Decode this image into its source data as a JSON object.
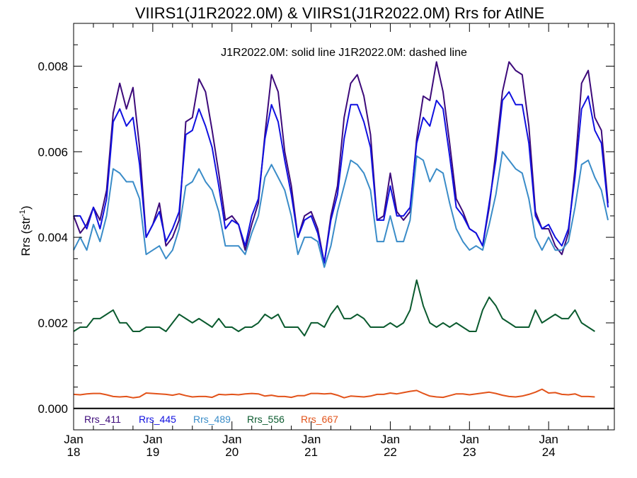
{
  "chart_data": {
    "type": "line",
    "title": "VIIRS1(J1R2022.0M) & VIIRS1(J1R2022.0M)  Rrs for AtlNE",
    "subtitle": "J1R2022.0M: solid line   J1R2022.0M: dashed line",
    "ylabel": "Rrs (str",
    "ylabel_sup": "-1",
    "ylabel_close": ")",
    "ylim": [
      -0.0005,
      0.009
    ],
    "xlim": [
      2018.0,
      2024.83
    ],
    "yticks": [
      {
        "value": 0.0,
        "label": "0.000"
      },
      {
        "value": 0.002,
        "label": "0.002"
      },
      {
        "value": 0.004,
        "label": "0.004"
      },
      {
        "value": 0.006,
        "label": "0.006"
      },
      {
        "value": 0.008,
        "label": "0.008"
      }
    ],
    "xticks": [
      {
        "value": 2018,
        "month": "Jan",
        "year": "18"
      },
      {
        "value": 2019,
        "month": "Jan",
        "year": "19"
      },
      {
        "value": 2020,
        "month": "Jan",
        "year": "20"
      },
      {
        "value": 2021,
        "month": "Jan",
        "year": "21"
      },
      {
        "value": 2022,
        "month": "Jan",
        "year": "22"
      },
      {
        "value": 2023,
        "month": "Jan",
        "year": "23"
      },
      {
        "value": 2024,
        "month": "Jan",
        "year": "24"
      }
    ],
    "x_start": 2018.0,
    "x_step": 0.08333,
    "series": [
      {
        "name": "Rrs_411",
        "color": "#3d0a7a",
        "values": [
          0.0045,
          0.0041,
          0.0043,
          0.0047,
          0.0044,
          0.0051,
          0.0069,
          0.0076,
          0.007,
          0.0075,
          0.0061,
          0.004,
          0.0043,
          0.0048,
          0.0038,
          0.004,
          0.0044,
          0.0067,
          0.0068,
          0.0077,
          0.0074,
          0.0065,
          0.0055,
          0.0044,
          0.0045,
          0.0043,
          0.0037,
          0.0043,
          0.0048,
          0.0064,
          0.0078,
          0.0074,
          0.006,
          0.0052,
          0.004,
          0.0045,
          0.0046,
          0.0042,
          0.0034,
          0.0045,
          0.0052,
          0.0068,
          0.0076,
          0.0078,
          0.0073,
          0.0064,
          0.0044,
          0.0045,
          0.0055,
          0.0046,
          0.0044,
          0.0046,
          0.0063,
          0.0073,
          0.0072,
          0.0081,
          0.0074,
          0.0062,
          0.0049,
          0.0046,
          0.0042,
          0.0041,
          0.0038,
          0.0047,
          0.006,
          0.0074,
          0.0081,
          0.0079,
          0.0078,
          0.0066,
          0.0046,
          0.0042,
          0.0042,
          0.0038,
          0.0036,
          0.0041,
          0.0056,
          0.0076,
          0.0079,
          0.0068,
          0.0065,
          0.0048
        ]
      },
      {
        "name": "Rrs_445",
        "color": "#1010e0",
        "values": [
          0.0045,
          0.0045,
          0.0042,
          0.0047,
          0.0042,
          0.0049,
          0.0067,
          0.007,
          0.0066,
          0.0068,
          0.0057,
          0.004,
          0.0043,
          0.0046,
          0.0039,
          0.0042,
          0.0046,
          0.0064,
          0.0065,
          0.007,
          0.0066,
          0.0061,
          0.0052,
          0.0042,
          0.0044,
          0.0043,
          0.0038,
          0.0045,
          0.0049,
          0.0063,
          0.0071,
          0.0067,
          0.0058,
          0.005,
          0.004,
          0.0044,
          0.0045,
          0.0041,
          0.0034,
          0.0044,
          0.005,
          0.0063,
          0.0071,
          0.0071,
          0.0067,
          0.0061,
          0.0044,
          0.0044,
          0.0052,
          0.0045,
          0.0045,
          0.0047,
          0.0062,
          0.0068,
          0.0066,
          0.0072,
          0.007,
          0.0059,
          0.0047,
          0.0045,
          0.0042,
          0.0041,
          0.0038,
          0.0048,
          0.0058,
          0.0072,
          0.0074,
          0.0071,
          0.0071,
          0.0062,
          0.0045,
          0.0042,
          0.0043,
          0.004,
          0.0038,
          0.0042,
          0.0054,
          0.007,
          0.0073,
          0.0065,
          0.0062,
          0.0047
        ]
      },
      {
        "name": "Rrs_489",
        "color": "#3a8cc8",
        "values": [
          0.0037,
          0.004,
          0.0037,
          0.0043,
          0.0039,
          0.0045,
          0.0056,
          0.0055,
          0.0053,
          0.0053,
          0.0049,
          0.0036,
          0.0037,
          0.0038,
          0.0035,
          0.0037,
          0.0042,
          0.0052,
          0.0053,
          0.0056,
          0.0053,
          0.0051,
          0.0046,
          0.0038,
          0.0038,
          0.0038,
          0.0036,
          0.0041,
          0.0045,
          0.0054,
          0.0057,
          0.0054,
          0.0051,
          0.0045,
          0.0036,
          0.004,
          0.004,
          0.0039,
          0.0033,
          0.0038,
          0.0046,
          0.0052,
          0.0058,
          0.0057,
          0.0055,
          0.0051,
          0.0039,
          0.0039,
          0.0045,
          0.0039,
          0.0039,
          0.0044,
          0.0059,
          0.0058,
          0.0053,
          0.0056,
          0.0055,
          0.0048,
          0.0042,
          0.0039,
          0.0037,
          0.0038,
          0.0037,
          0.0043,
          0.005,
          0.006,
          0.0058,
          0.0056,
          0.0055,
          0.0049,
          0.004,
          0.0037,
          0.004,
          0.0037,
          0.0037,
          0.0039,
          0.0047,
          0.0057,
          0.0058,
          0.0054,
          0.0051,
          0.0044
        ]
      },
      {
        "name": "Rrs_556",
        "color": "#0a5a2e",
        "values": [
          0.0018,
          0.0019,
          0.0019,
          0.0021,
          0.0021,
          0.0022,
          0.0023,
          0.002,
          0.002,
          0.0018,
          0.0018,
          0.0019,
          0.0019,
          0.0019,
          0.0018,
          0.002,
          0.0022,
          0.0021,
          0.002,
          0.0021,
          0.002,
          0.0019,
          0.0021,
          0.0019,
          0.0019,
          0.0018,
          0.0019,
          0.0019,
          0.002,
          0.0022,
          0.0021,
          0.0022,
          0.0019,
          0.0019,
          0.0019,
          0.0017,
          0.002,
          0.002,
          0.0019,
          0.0022,
          0.0024,
          0.0021,
          0.0021,
          0.0022,
          0.0021,
          0.0019,
          0.0019,
          0.0019,
          0.002,
          0.0019,
          0.002,
          0.0023,
          0.003,
          0.0024,
          0.002,
          0.0019,
          0.002,
          0.0019,
          0.002,
          0.0019,
          0.0018,
          0.0018,
          0.0023,
          0.0026,
          0.0024,
          0.0021,
          0.002,
          0.0019,
          0.0019,
          0.0019,
          0.0023,
          0.002,
          0.0021,
          0.0022,
          0.0021,
          0.0021,
          0.0023,
          0.002,
          0.0019,
          0.0018
        ]
      },
      {
        "name": "Rrs_667",
        "color": "#e2531a",
        "values": [
          0.00033,
          0.00032,
          0.00034,
          0.00035,
          0.00035,
          0.00032,
          0.00028,
          0.00027,
          0.00028,
          0.00025,
          0.00027,
          0.00036,
          0.00035,
          0.00034,
          0.00033,
          0.00031,
          0.00034,
          0.0003,
          0.00027,
          0.00028,
          0.00028,
          0.00026,
          0.00033,
          0.00032,
          0.00033,
          0.00032,
          0.00034,
          0.00035,
          0.00034,
          0.00029,
          0.00031,
          0.00028,
          0.00028,
          0.00026,
          0.0003,
          0.0003,
          0.00035,
          0.00035,
          0.00034,
          0.00035,
          0.00031,
          0.00025,
          0.00029,
          0.00028,
          0.00027,
          0.00029,
          0.00033,
          0.00033,
          0.00036,
          0.00034,
          0.00037,
          0.0004,
          0.00042,
          0.00035,
          0.00029,
          0.00027,
          0.00026,
          0.0003,
          0.00034,
          0.00034,
          0.00032,
          0.00034,
          0.00036,
          0.00038,
          0.00035,
          0.00031,
          0.00028,
          0.00027,
          0.00029,
          0.00033,
          0.00038,
          0.00045,
          0.00036,
          0.00037,
          0.00033,
          0.00032,
          0.00034,
          0.00028,
          0.00028,
          0.00027
        ]
      }
    ]
  }
}
